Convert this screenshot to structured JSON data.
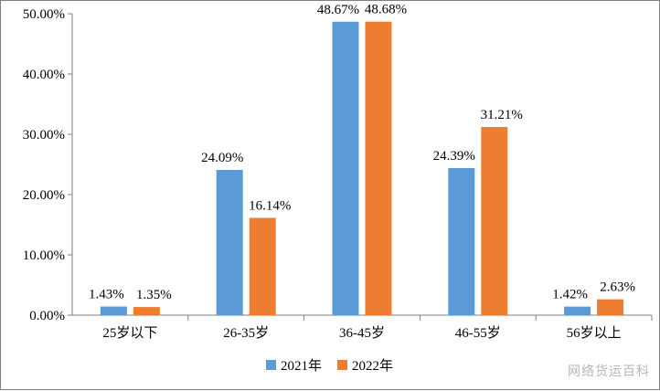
{
  "chart_data": {
    "type": "bar",
    "categories": [
      "25岁以下",
      "26-35岁",
      "36-45岁",
      "46-55岁",
      "56岁以上"
    ],
    "series": [
      {
        "name": "2021年",
        "color": "#5B9BD5",
        "values": [
          1.43,
          24.09,
          48.67,
          24.39,
          1.42
        ],
        "labels": [
          "1.43%",
          "24.09%",
          "48.67%",
          "24.39%",
          "1.42%"
        ]
      },
      {
        "name": "2022年",
        "color": "#ED7D31",
        "values": [
          1.35,
          16.14,
          48.68,
          31.21,
          2.63
        ],
        "labels": [
          "1.35%",
          "16.14%",
          "48.68%",
          "31.21%",
          "2.63%"
        ]
      }
    ],
    "ylim": [
      0,
      50
    ],
    "yticks": [
      "0.00%",
      "10.00%",
      "20.00%",
      "30.00%",
      "40.00%",
      "50.00%"
    ],
    "ytick_values": [
      0,
      10,
      20,
      30,
      40,
      50
    ],
    "grid": false,
    "legend_position": "bottom-center",
    "title": "",
    "xlabel": "",
    "ylabel": ""
  },
  "watermark": "网络货运百科"
}
